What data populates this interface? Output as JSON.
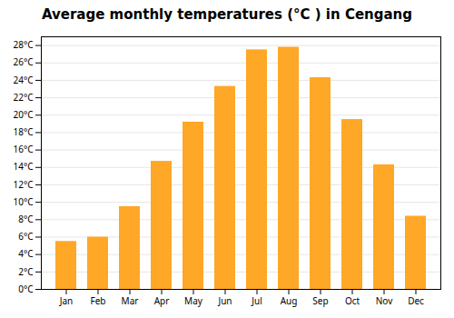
{
  "chart_data": {
    "type": "bar",
    "title": "Average monthly temperatures (°C ) in Cengang",
    "categories": [
      "Jan",
      "Feb",
      "Mar",
      "Apr",
      "May",
      "Jun",
      "Jul",
      "Aug",
      "Sep",
      "Oct",
      "Nov",
      "Dec"
    ],
    "values": [
      5.5,
      6.0,
      9.5,
      14.7,
      19.2,
      23.3,
      27.5,
      27.8,
      24.3,
      19.5,
      14.3,
      8.4
    ],
    "color": "#FFA726",
    "ylim": [
      0,
      29
    ],
    "yticks": [
      {
        "value": 0,
        "label": "0°C"
      },
      {
        "value": 2,
        "label": "2°C"
      },
      {
        "value": 4,
        "label": "4°C"
      },
      {
        "value": 6,
        "label": "6°C"
      },
      {
        "value": 8,
        "label": "8°C"
      },
      {
        "value": 10,
        "label": "10°C"
      },
      {
        "value": 12,
        "label": "12°C"
      },
      {
        "value": 14,
        "label": "14°C"
      },
      {
        "value": 16,
        "label": "16°C"
      },
      {
        "value": 18,
        "label": "18°C"
      },
      {
        "value": 20,
        "label": "20°C"
      },
      {
        "value": 22,
        "label": "22°C"
      },
      {
        "value": 24,
        "label": "24°C"
      },
      {
        "value": 26,
        "label": "26°C"
      },
      {
        "value": 28,
        "label": "28°C"
      }
    ],
    "grid": true
  }
}
